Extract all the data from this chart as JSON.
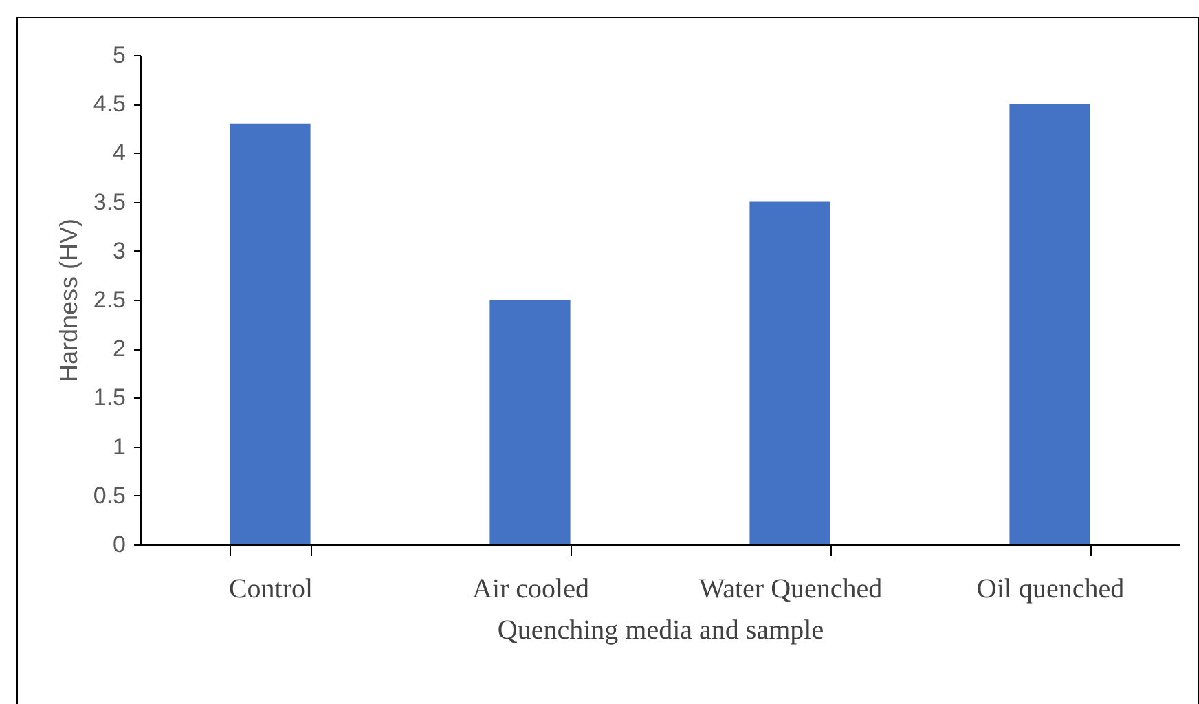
{
  "chart_data": {
    "type": "bar",
    "xlabel": "Quenching media and sample",
    "ylabel": "Hardness (HV)",
    "categories": [
      "Control",
      "Air cooled",
      "Water Quenched",
      "Oil quenched"
    ],
    "values": [
      4.3,
      2.5,
      3.5,
      4.5
    ],
    "color": "#4472c4",
    "ylim": [
      0,
      5
    ],
    "yticks": [
      0,
      0.5,
      1,
      1.5,
      2,
      2.5,
      3,
      3.5,
      4,
      4.5,
      5
    ],
    "grid": false
  }
}
